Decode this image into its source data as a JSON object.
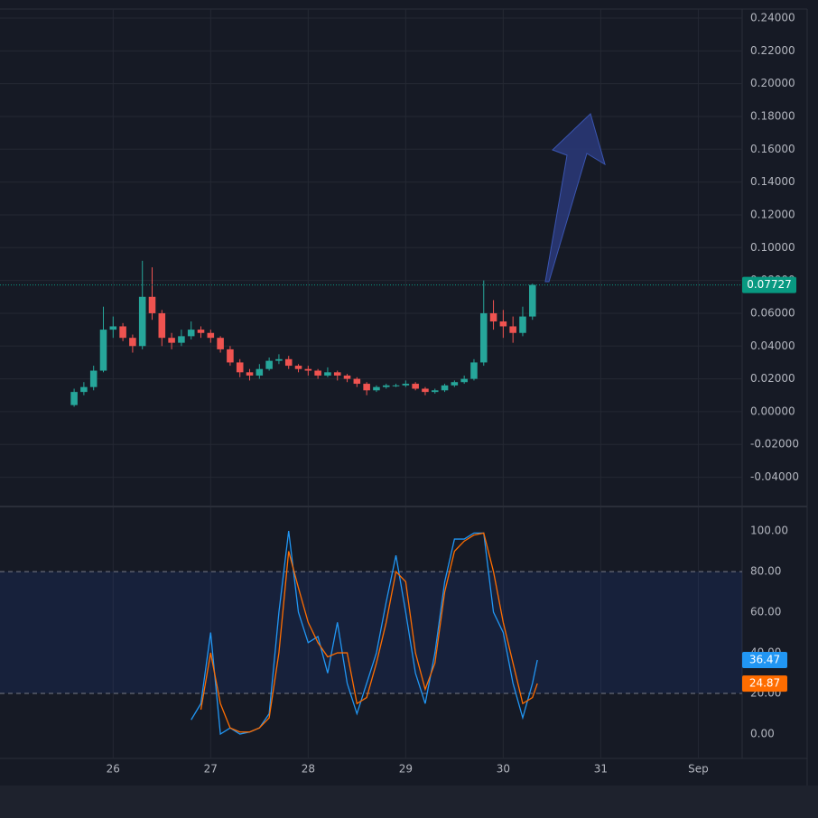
{
  "chart_data": [
    {
      "type": "candlestick",
      "up_color": "#26a69a",
      "down_color": "#ef5350",
      "x": [
        25.6,
        25.7,
        25.8,
        25.9,
        26.0,
        26.1,
        26.2,
        26.3,
        26.4,
        26.5,
        26.6,
        26.7,
        26.8,
        26.9,
        27.0,
        27.1,
        27.2,
        27.3,
        27.4,
        27.5,
        27.6,
        27.7,
        27.8,
        27.9,
        28.0,
        28.1,
        28.2,
        28.3,
        28.4,
        28.5,
        28.6,
        28.7,
        28.8,
        28.9,
        29.0,
        29.1,
        29.2,
        29.3,
        29.4,
        29.5,
        29.6,
        29.7,
        29.8,
        29.9,
        30.0,
        30.1,
        30.2,
        30.3
      ],
      "open": [
        0.004,
        0.012,
        0.015,
        0.025,
        0.05,
        0.052,
        0.045,
        0.04,
        0.07,
        0.06,
        0.045,
        0.042,
        0.046,
        0.05,
        0.048,
        0.045,
        0.038,
        0.03,
        0.024,
        0.022,
        0.026,
        0.031,
        0.032,
        0.028,
        0.026,
        0.025,
        0.022,
        0.024,
        0.022,
        0.02,
        0.017,
        0.013,
        0.015,
        0.016,
        0.016,
        0.017,
        0.014,
        0.012,
        0.013,
        0.016,
        0.018,
        0.02,
        0.03,
        0.06,
        0.055,
        0.052,
        0.048,
        0.058
      ],
      "high": [
        0.014,
        0.018,
        0.028,
        0.064,
        0.058,
        0.054,
        0.047,
        0.092,
        0.088,
        0.062,
        0.048,
        0.05,
        0.055,
        0.052,
        0.05,
        0.046,
        0.04,
        0.032,
        0.026,
        0.029,
        0.033,
        0.035,
        0.034,
        0.029,
        0.028,
        0.026,
        0.027,
        0.025,
        0.023,
        0.021,
        0.018,
        0.016,
        0.017,
        0.017,
        0.019,
        0.018,
        0.015,
        0.014,
        0.017,
        0.019,
        0.022,
        0.032,
        0.08,
        0.068,
        0.062,
        0.058,
        0.064,
        0.078
      ],
      "low": [
        0.003,
        0.01,
        0.013,
        0.024,
        0.045,
        0.043,
        0.036,
        0.038,
        0.056,
        0.04,
        0.038,
        0.04,
        0.044,
        0.045,
        0.042,
        0.036,
        0.028,
        0.021,
        0.019,
        0.02,
        0.025,
        0.029,
        0.026,
        0.024,
        0.022,
        0.02,
        0.021,
        0.019,
        0.018,
        0.015,
        0.01,
        0.012,
        0.014,
        0.015,
        0.015,
        0.013,
        0.01,
        0.011,
        0.012,
        0.015,
        0.017,
        0.019,
        0.028,
        0.05,
        0.045,
        0.042,
        0.046,
        0.056
      ],
      "close": [
        0.012,
        0.015,
        0.025,
        0.05,
        0.052,
        0.045,
        0.04,
        0.07,
        0.06,
        0.045,
        0.042,
        0.046,
        0.05,
        0.048,
        0.045,
        0.038,
        0.03,
        0.024,
        0.022,
        0.026,
        0.031,
        0.032,
        0.028,
        0.026,
        0.025,
        0.022,
        0.024,
        0.022,
        0.02,
        0.017,
        0.013,
        0.015,
        0.016,
        0.016,
        0.017,
        0.014,
        0.012,
        0.013,
        0.016,
        0.018,
        0.02,
        0.03,
        0.06,
        0.055,
        0.052,
        0.048,
        0.058,
        0.07727
      ],
      "xlim": [
        24.84,
        32.45
      ],
      "ylim": [
        -0.0573,
        0.2455
      ],
      "yticks": [
        {
          "value": 0.24,
          "label": "0.24000"
        },
        {
          "value": 0.22,
          "label": "0.22000"
        },
        {
          "value": 0.2,
          "label": "0.20000"
        },
        {
          "value": 0.18,
          "label": "0.18000"
        },
        {
          "value": 0.16,
          "label": "0.16000"
        },
        {
          "value": 0.14,
          "label": "0.14000"
        },
        {
          "value": 0.12,
          "label": "0.12000"
        },
        {
          "value": 0.1,
          "label": "0.10000"
        },
        {
          "value": 0.08,
          "label": "0.08000"
        },
        {
          "value": 0.06,
          "label": "0.06000"
        },
        {
          "value": 0.04,
          "label": "0.04000"
        },
        {
          "value": 0.02,
          "label": "0.02000"
        },
        {
          "value": 0,
          "label": "0.00000"
        },
        {
          "value": -0.02,
          "label": "-0.02000"
        },
        {
          "value": -0.04,
          "label": "-0.04000"
        }
      ],
      "last_price_color": "#089981"
    },
    {
      "type": "line",
      "x": [
        26.8,
        26.9,
        27.0,
        27.1,
        27.2,
        27.3,
        27.4,
        27.5,
        27.6,
        27.7,
        27.8,
        27.9,
        28.0,
        28.1,
        28.2,
        28.3,
        28.4,
        28.5,
        28.6,
        28.7,
        28.8,
        28.9,
        29.0,
        29.1,
        29.2,
        29.3,
        29.4,
        29.5,
        29.6,
        29.7,
        29.8,
        29.9,
        30.0,
        30.1,
        30.2,
        30.3,
        30.35
      ],
      "series": [
        {
          "color": "#2196f3",
          "values": [
            7,
            15,
            50,
            0,
            3,
            0,
            1,
            3,
            10,
            60,
            100,
            60,
            45,
            48,
            30,
            55,
            25,
            10,
            25,
            40,
            65,
            88,
            60,
            30,
            15,
            40,
            75,
            96,
            96,
            99,
            99,
            60,
            50,
            25,
            8,
            25,
            36.47
          ]
        },
        {
          "color": "#ff6d00",
          "values": [
            null,
            12,
            40,
            15,
            3,
            1,
            1,
            3,
            8,
            40,
            90,
            72,
            55,
            45,
            38,
            40,
            40,
            15,
            18,
            35,
            55,
            80,
            75,
            40,
            22,
            35,
            70,
            90,
            95,
            98,
            99,
            80,
            55,
            35,
            15,
            18,
            24.87
          ]
        }
      ],
      "band": [
        20,
        80
      ],
      "xlim": [
        24.84,
        32.45
      ],
      "ylim": [
        -12,
        111.6
      ],
      "yticks": [
        {
          "value": 100,
          "label": "100.00"
        },
        {
          "value": 80,
          "label": "80.00"
        },
        {
          "value": 60,
          "label": "60.00"
        },
        {
          "value": 40,
          "label": "40.00"
        },
        {
          "value": 20,
          "label": "20.00"
        },
        {
          "value": 0,
          "label": "0.00"
        }
      ],
      "xticks": [
        26,
        27,
        28,
        29,
        30,
        31,
        {
          "value": 32,
          "label": "Sep"
        }
      ]
    }
  ]
}
